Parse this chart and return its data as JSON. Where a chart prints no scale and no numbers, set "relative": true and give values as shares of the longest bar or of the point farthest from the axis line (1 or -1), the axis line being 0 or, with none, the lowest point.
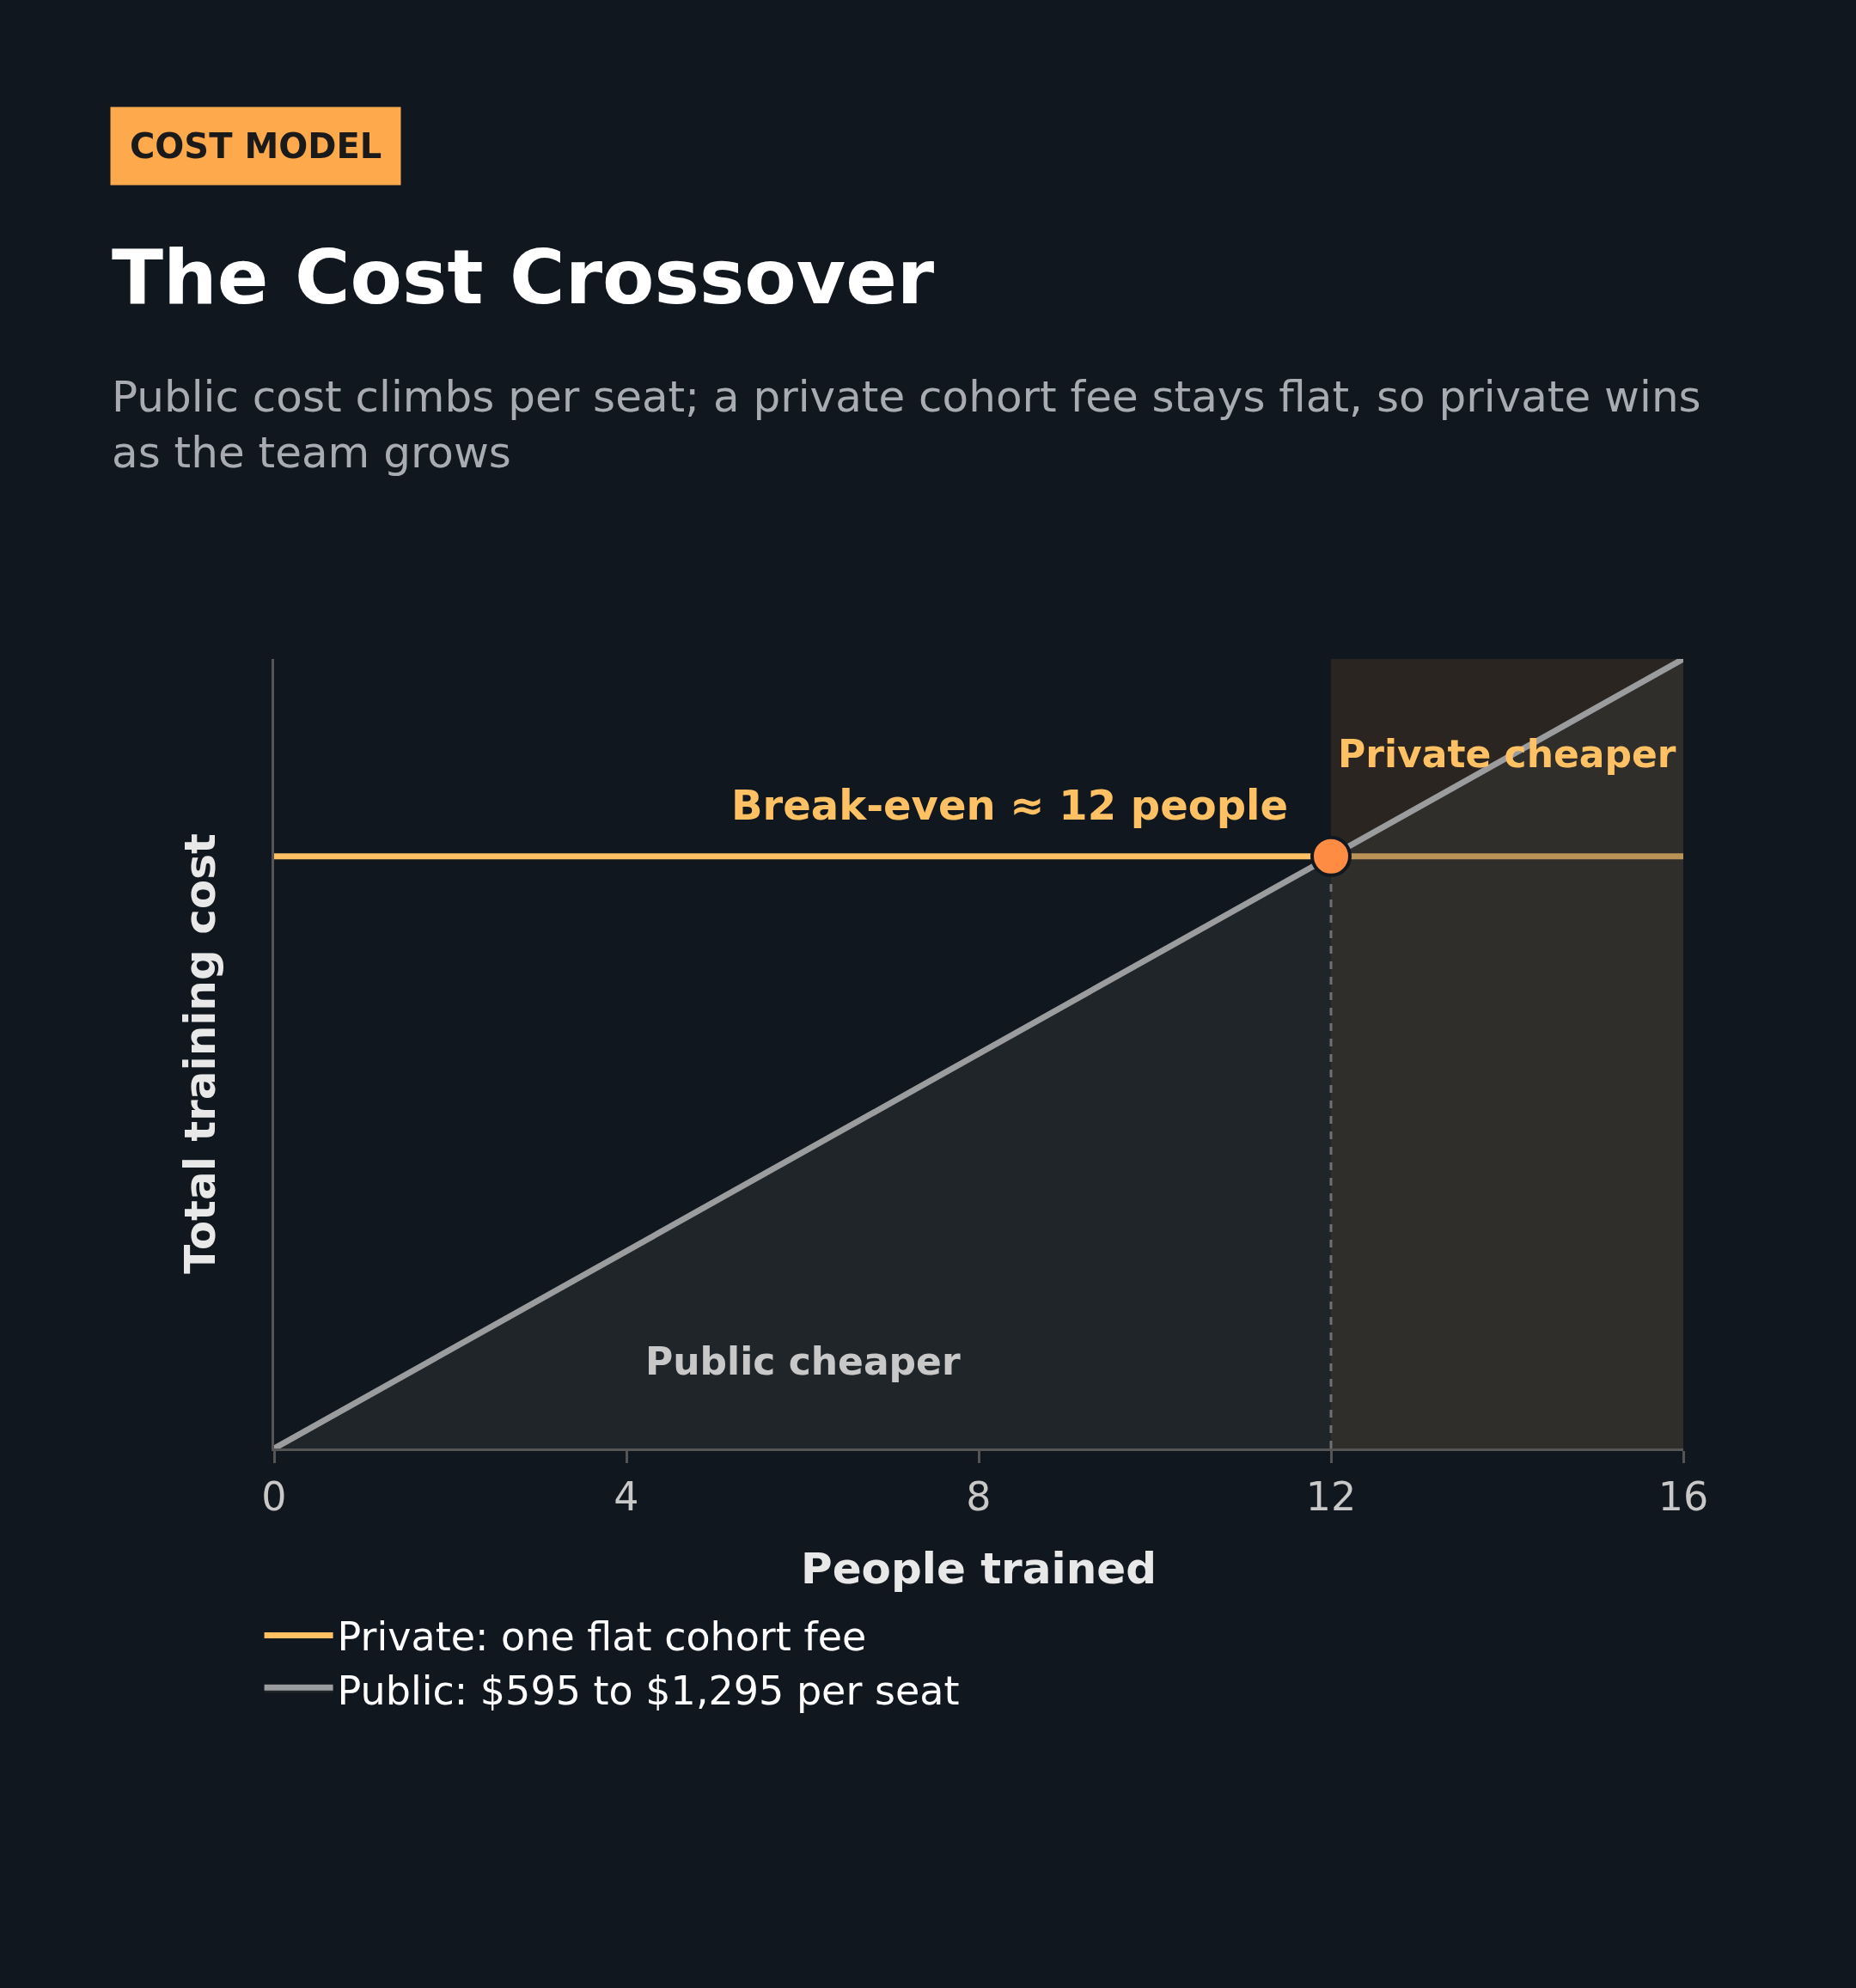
{
  "chart_data": {
    "type": "line",
    "title": "The Cost Crossover",
    "subtitle": "Public cost climbs per seat; a private cohort fee stays flat, so private wins as the team grows",
    "xlabel": "People trained",
    "ylabel": "Total training cost",
    "relative": true,
    "xlim": [
      0,
      16
    ],
    "xticks": [
      0,
      4,
      8,
      12,
      16
    ],
    "grid": false,
    "legend": "bottom",
    "series": [
      {
        "name": "Private: one flat cohort fee",
        "color": "#ffc163",
        "x": [
          0,
          16
        ],
        "values": [
          0.75,
          0.75
        ]
      },
      {
        "name": "Public: $595 to $1,295 per seat",
        "color": "#9a9c9e",
        "type": "area",
        "x": [
          0,
          16
        ],
        "values": [
          0,
          1
        ]
      },
      {
        "color": "#ff8c42",
        "type": "scatter",
        "marker": "circle",
        "x": [
          12
        ],
        "values": [
          0.75
        ]
      }
    ],
    "ref_lines": [
      {
        "axis": "x",
        "value": 12,
        "label": null,
        "color": "#8a8a8a",
        "line_style": "dashed"
      }
    ],
    "bands": [
      {
        "axis": "x",
        "from": 12,
        "to": 16,
        "label": "Private cheaper",
        "color": "#2a2520"
      }
    ],
    "annotations": [
      "COST MODEL",
      {
        "text": "Break-even ≈ 12 people",
        "x": 12,
        "y": 0.75
      },
      "Public cheaper"
    ]
  }
}
